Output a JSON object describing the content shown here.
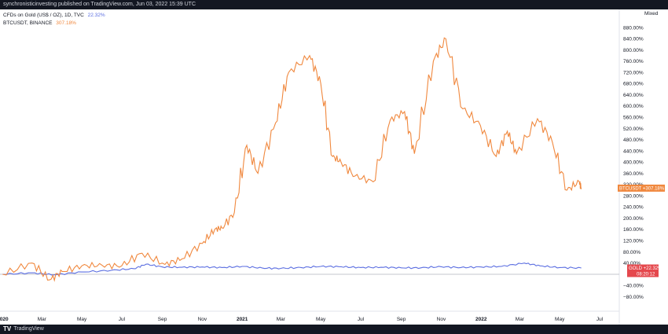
{
  "header": {
    "published_text": "synchronisticinvesting published on TradingView.com, Jun 03, 2022 15:39 UTC"
  },
  "footer": {
    "brand": "TradingView",
    "brand_mark": "TV"
  },
  "chart_data": {
    "type": "line",
    "scale_mode": "Mixed",
    "series": [
      {
        "name": "CFDs on Gold (US$ / OZ), 1D, TVC",
        "legend_value": "22.32%",
        "tag_label": "GOLD",
        "tag_value": "+22.32%",
        "tag_countdown": "08:20:12",
        "color": "#5b6ee1",
        "x": [
          "2020-01-01",
          "2020-02-15",
          "2020-03-20",
          "2020-05-01",
          "2020-06-15",
          "2020-07-20",
          "2020-08-07",
          "2020-09-01",
          "2020-10-01",
          "2020-11-01",
          "2020-12-01",
          "2021-01-01",
          "2021-02-01",
          "2021-03-01",
          "2021-04-01",
          "2021-05-01",
          "2021-06-01",
          "2021-07-01",
          "2021-08-01",
          "2021-09-01",
          "2021-10-01",
          "2021-11-01",
          "2021-12-01",
          "2022-01-01",
          "2022-02-01",
          "2022-03-08",
          "2022-04-01",
          "2022-05-01",
          "2022-06-03"
        ],
        "y": [
          0,
          5,
          -2,
          8,
          14,
          20,
          36,
          26,
          25,
          26,
          24,
          28,
          22,
          21,
          24,
          28,
          27,
          24,
          25,
          23,
          23,
          27,
          24,
          26,
          28,
          40,
          30,
          24,
          22.32
        ]
      },
      {
        "name": "BTCUSDT, BINANCE",
        "legend_value": "307.18%",
        "tag_label": "BTCUSDT",
        "tag_value": "+307.18%",
        "color": "#f0883e",
        "x": [
          "2020-01-01",
          "2020-02-15",
          "2020-03-13",
          "2020-04-01",
          "2020-05-01",
          "2020-06-01",
          "2020-07-01",
          "2020-08-01",
          "2020-09-05",
          "2020-10-01",
          "2020-11-01",
          "2020-11-20",
          "2020-12-01",
          "2020-12-20",
          "2021-01-08",
          "2021-01-25",
          "2021-02-21",
          "2021-03-13",
          "2021-04-14",
          "2021-05-01",
          "2021-05-19",
          "2021-06-01",
          "2021-06-22",
          "2021-07-20",
          "2021-08-15",
          "2021-09-06",
          "2021-09-21",
          "2021-10-20",
          "2021-11-08",
          "2021-12-04",
          "2021-12-31",
          "2022-01-24",
          "2022-02-10",
          "2022-02-24",
          "2022-03-28",
          "2022-04-20",
          "2022-05-12",
          "2022-05-31",
          "2022-06-03"
        ],
        "y": [
          0,
          40,
          -20,
          10,
          30,
          32,
          30,
          75,
          35,
          55,
          110,
          160,
          165,
          220,
          460,
          360,
          540,
          720,
          780,
          680,
          420,
          400,
          350,
          330,
          550,
          580,
          430,
          760,
          840,
          590,
          530,
          420,
          510,
          430,
          555,
          470,
          300,
          330,
          307.18
        ]
      }
    ],
    "x_ticks": [
      "2020",
      "Mar",
      "May",
      "Jul",
      "Sep",
      "Nov",
      "2021",
      "Mar",
      "May",
      "Jul",
      "Sep",
      "Nov",
      "2022",
      "Mar",
      "May",
      "Jul"
    ],
    "x_tick_dates": [
      "2020-01-01",
      "2020-03-01",
      "2020-05-01",
      "2020-07-01",
      "2020-09-01",
      "2020-11-01",
      "2021-01-01",
      "2021-03-01",
      "2021-05-01",
      "2021-07-01",
      "2021-09-01",
      "2021-11-01",
      "2022-01-01",
      "2022-03-01",
      "2022-05-01",
      "2022-07-01"
    ],
    "y_ticks": [
      880,
      840,
      800,
      760,
      720,
      680,
      640,
      600,
      560,
      520,
      480,
      440,
      400,
      360,
      320,
      280,
      240,
      200,
      160,
      120,
      80,
      40,
      -40,
      -80
    ],
    "y_tick_labels": [
      "880.00%",
      "840.00%",
      "800.00%",
      "760.00%",
      "720.00%",
      "680.00%",
      "640.00%",
      "600.00%",
      "560.00%",
      "520.00%",
      "480.00%",
      "440.00%",
      "400.00%",
      "360.00%",
      "320.00%",
      "280.00%",
      "240.00%",
      "200.00%",
      "160.00%",
      "120.00%",
      "80.00%",
      "40.00%",
      "−40.00%",
      "−80.00%"
    ],
    "xlim": [
      "2019-12-28",
      "2022-07-31"
    ],
    "ylim": [
      -100,
      900
    ],
    "baseline": 0,
    "grid": false,
    "legend_position": "top-left"
  }
}
